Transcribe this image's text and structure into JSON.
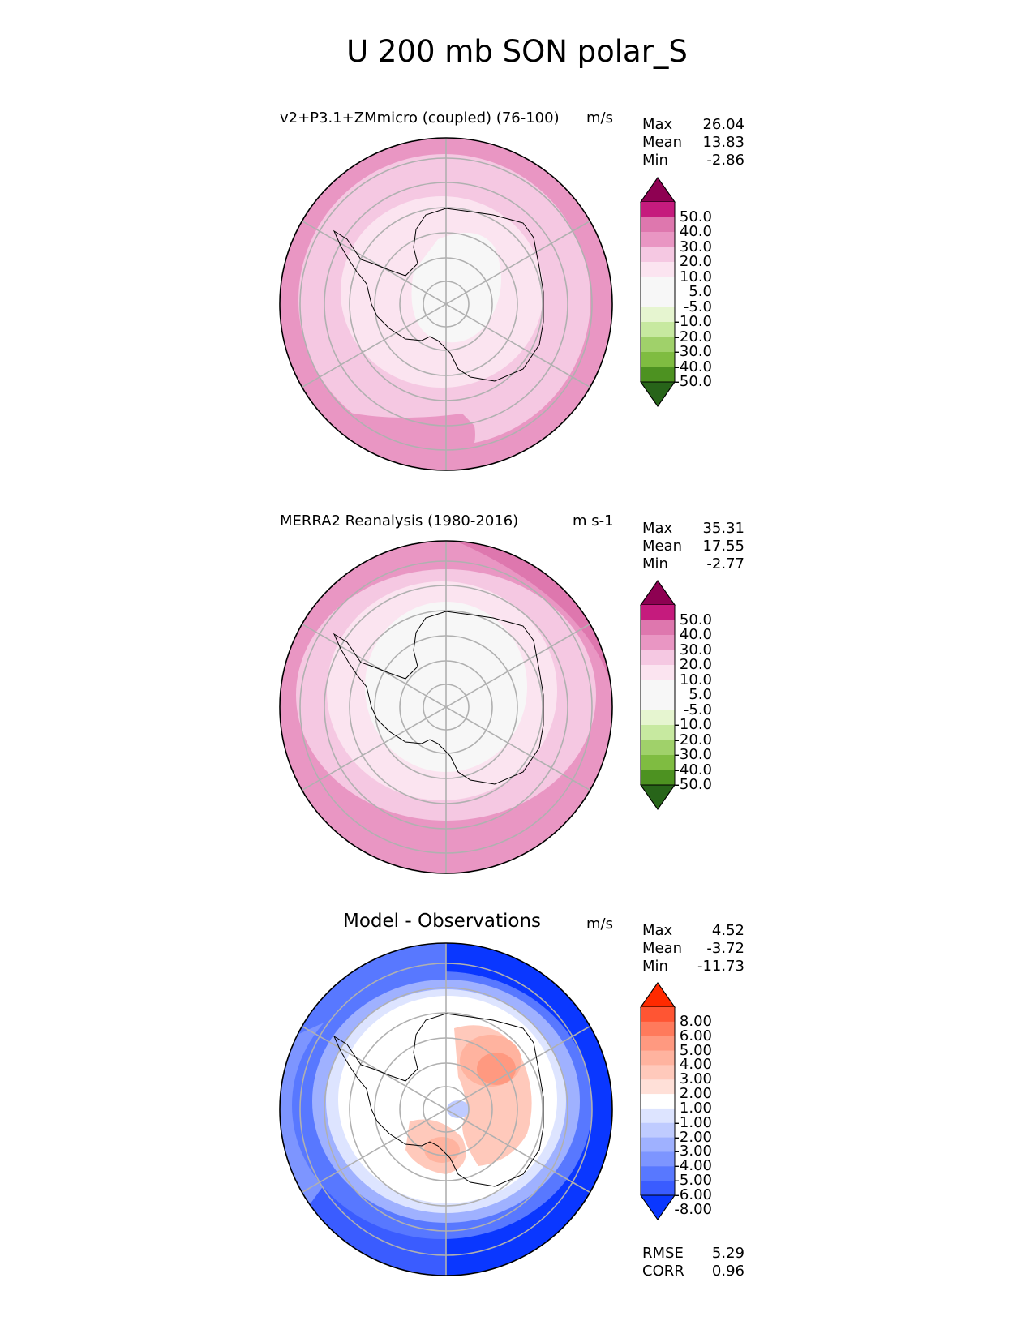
{
  "figure_title": "U 200 mb SON polar_S",
  "panels": [
    {
      "title": "v2+P3.1+ZMmicro (coupled) (76-100)",
      "units": "m/s",
      "stats": {
        "max_label": "Max",
        "max": "26.04",
        "mean_label": "Mean",
        "mean": "13.83",
        "min_label": "Min",
        "min": "-2.86"
      }
    },
    {
      "title": "MERRA2 Reanalysis (1980-2016)",
      "units": "m s-1",
      "stats": {
        "max_label": "Max",
        "max": "35.31",
        "mean_label": "Mean",
        "mean": "17.55",
        "min_label": "Min",
        "min": "-2.77"
      }
    },
    {
      "title": "Model - Observations",
      "units": "m/s",
      "stats": {
        "max_label": "Max",
        "max": "4.52",
        "mean_label": "Mean",
        "mean": "-3.72",
        "min_label": "Min",
        "min": "-11.73"
      },
      "metrics": {
        "rmse_label": "RMSE",
        "rmse": "5.29",
        "corr_label": "CORR",
        "corr": "0.96"
      }
    }
  ],
  "colorbar_field": {
    "ticks": [
      "50.0",
      "40.0",
      "30.0",
      "20.0",
      "10.0",
      "5.0",
      "-5.0",
      "-10.0",
      "-20.0",
      "-30.0",
      "-40.0",
      "-50.0"
    ],
    "colors": [
      "#8e0152",
      "#c51b7d",
      "#de77ae",
      "#e996c3",
      "#f5c8e2",
      "#fbe4f0",
      "#f7f7f7",
      "#f7f7f7",
      "#e6f5d0",
      "#c7e9a0",
      "#a0d16a",
      "#7fbc41",
      "#4d9221",
      "#276419"
    ]
  },
  "colorbar_diff": {
    "ticks": [
      "8.00",
      "6.00",
      "5.00",
      "4.00",
      "3.00",
      "2.00",
      "1.00",
      "-1.00",
      "-2.00",
      "-3.00",
      "-4.00",
      "-5.00",
      "-6.00",
      "-8.00"
    ],
    "colors": [
      "#ff2a00",
      "#ff5533",
      "#ff7a5c",
      "#ff9980",
      "#ffb39f",
      "#ffc9bb",
      "#ffe0d8",
      "#ffffff",
      "#dde4ff",
      "#bfcbff",
      "#9fb1ff",
      "#7d95ff",
      "#5878ff",
      "#3a5cff",
      "#0a37ff"
    ]
  }
}
